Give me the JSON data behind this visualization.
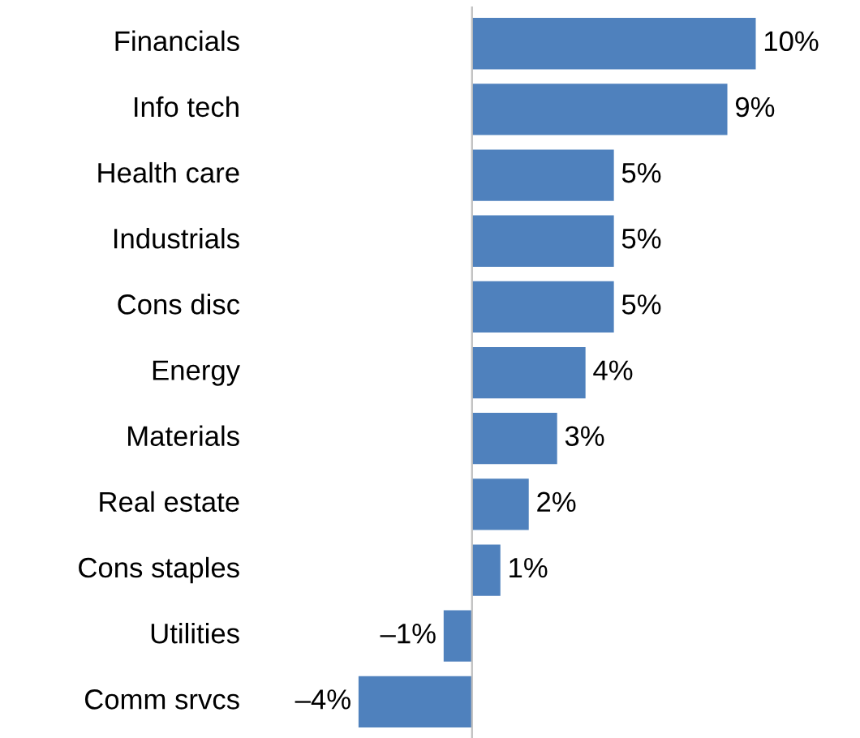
{
  "chart_data": {
    "type": "bar",
    "orientation": "horizontal",
    "categories": [
      "Financials",
      "Info tech",
      "Health care",
      "Industrials",
      "Cons disc",
      "Energy",
      "Materials",
      "Real estate",
      "Cons staples",
      "Utilities",
      "Comm srvcs"
    ],
    "values": [
      10,
      9,
      5,
      5,
      5,
      4,
      3,
      2,
      1,
      -1,
      -4
    ],
    "value_labels": [
      "10%",
      "9%",
      "5%",
      "5%",
      "5%",
      "4%",
      "3%",
      "2%",
      "1%",
      "–1%",
      "–4%"
    ],
    "color": "#4f81bd",
    "tick_labels": "y"
  }
}
